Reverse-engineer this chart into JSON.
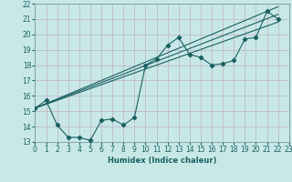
{
  "xlabel": "Humidex (Indice chaleur)",
  "bg_color": "#c8e8e8",
  "grid_color": "#c0b0c0",
  "line_color": "#1a6060",
  "xlim": [
    0,
    23
  ],
  "ylim": [
    13,
    22
  ],
  "xticks": [
    0,
    1,
    2,
    3,
    4,
    5,
    6,
    7,
    8,
    9,
    10,
    11,
    12,
    13,
    14,
    15,
    16,
    17,
    18,
    19,
    20,
    21,
    22,
    23
  ],
  "yticks": [
    13,
    14,
    15,
    16,
    17,
    18,
    19,
    20,
    21,
    22
  ],
  "main_x": [
    0,
    1,
    2,
    3,
    4,
    5,
    6,
    7,
    8,
    9,
    10,
    11,
    12,
    13,
    14,
    15,
    16,
    17,
    18,
    19,
    20,
    21,
    22
  ],
  "main_y": [
    15.2,
    15.7,
    14.1,
    13.3,
    13.3,
    13.1,
    14.4,
    14.5,
    14.1,
    14.6,
    18.0,
    18.4,
    19.3,
    19.8,
    18.7,
    18.5,
    18.0,
    18.1,
    18.3,
    19.7,
    19.8,
    21.5,
    21.0
  ],
  "trend1_x": [
    0,
    22
  ],
  "trend1_y": [
    15.2,
    21.8
  ],
  "trend2_x": [
    0,
    22
  ],
  "trend2_y": [
    15.2,
    21.3
  ],
  "trend3_x": [
    0,
    22
  ],
  "trend3_y": [
    15.2,
    20.8
  ],
  "xlabel_fontsize": 6,
  "tick_fontsize": 5.5,
  "linewidth": 0.8,
  "markersize": 2.2
}
